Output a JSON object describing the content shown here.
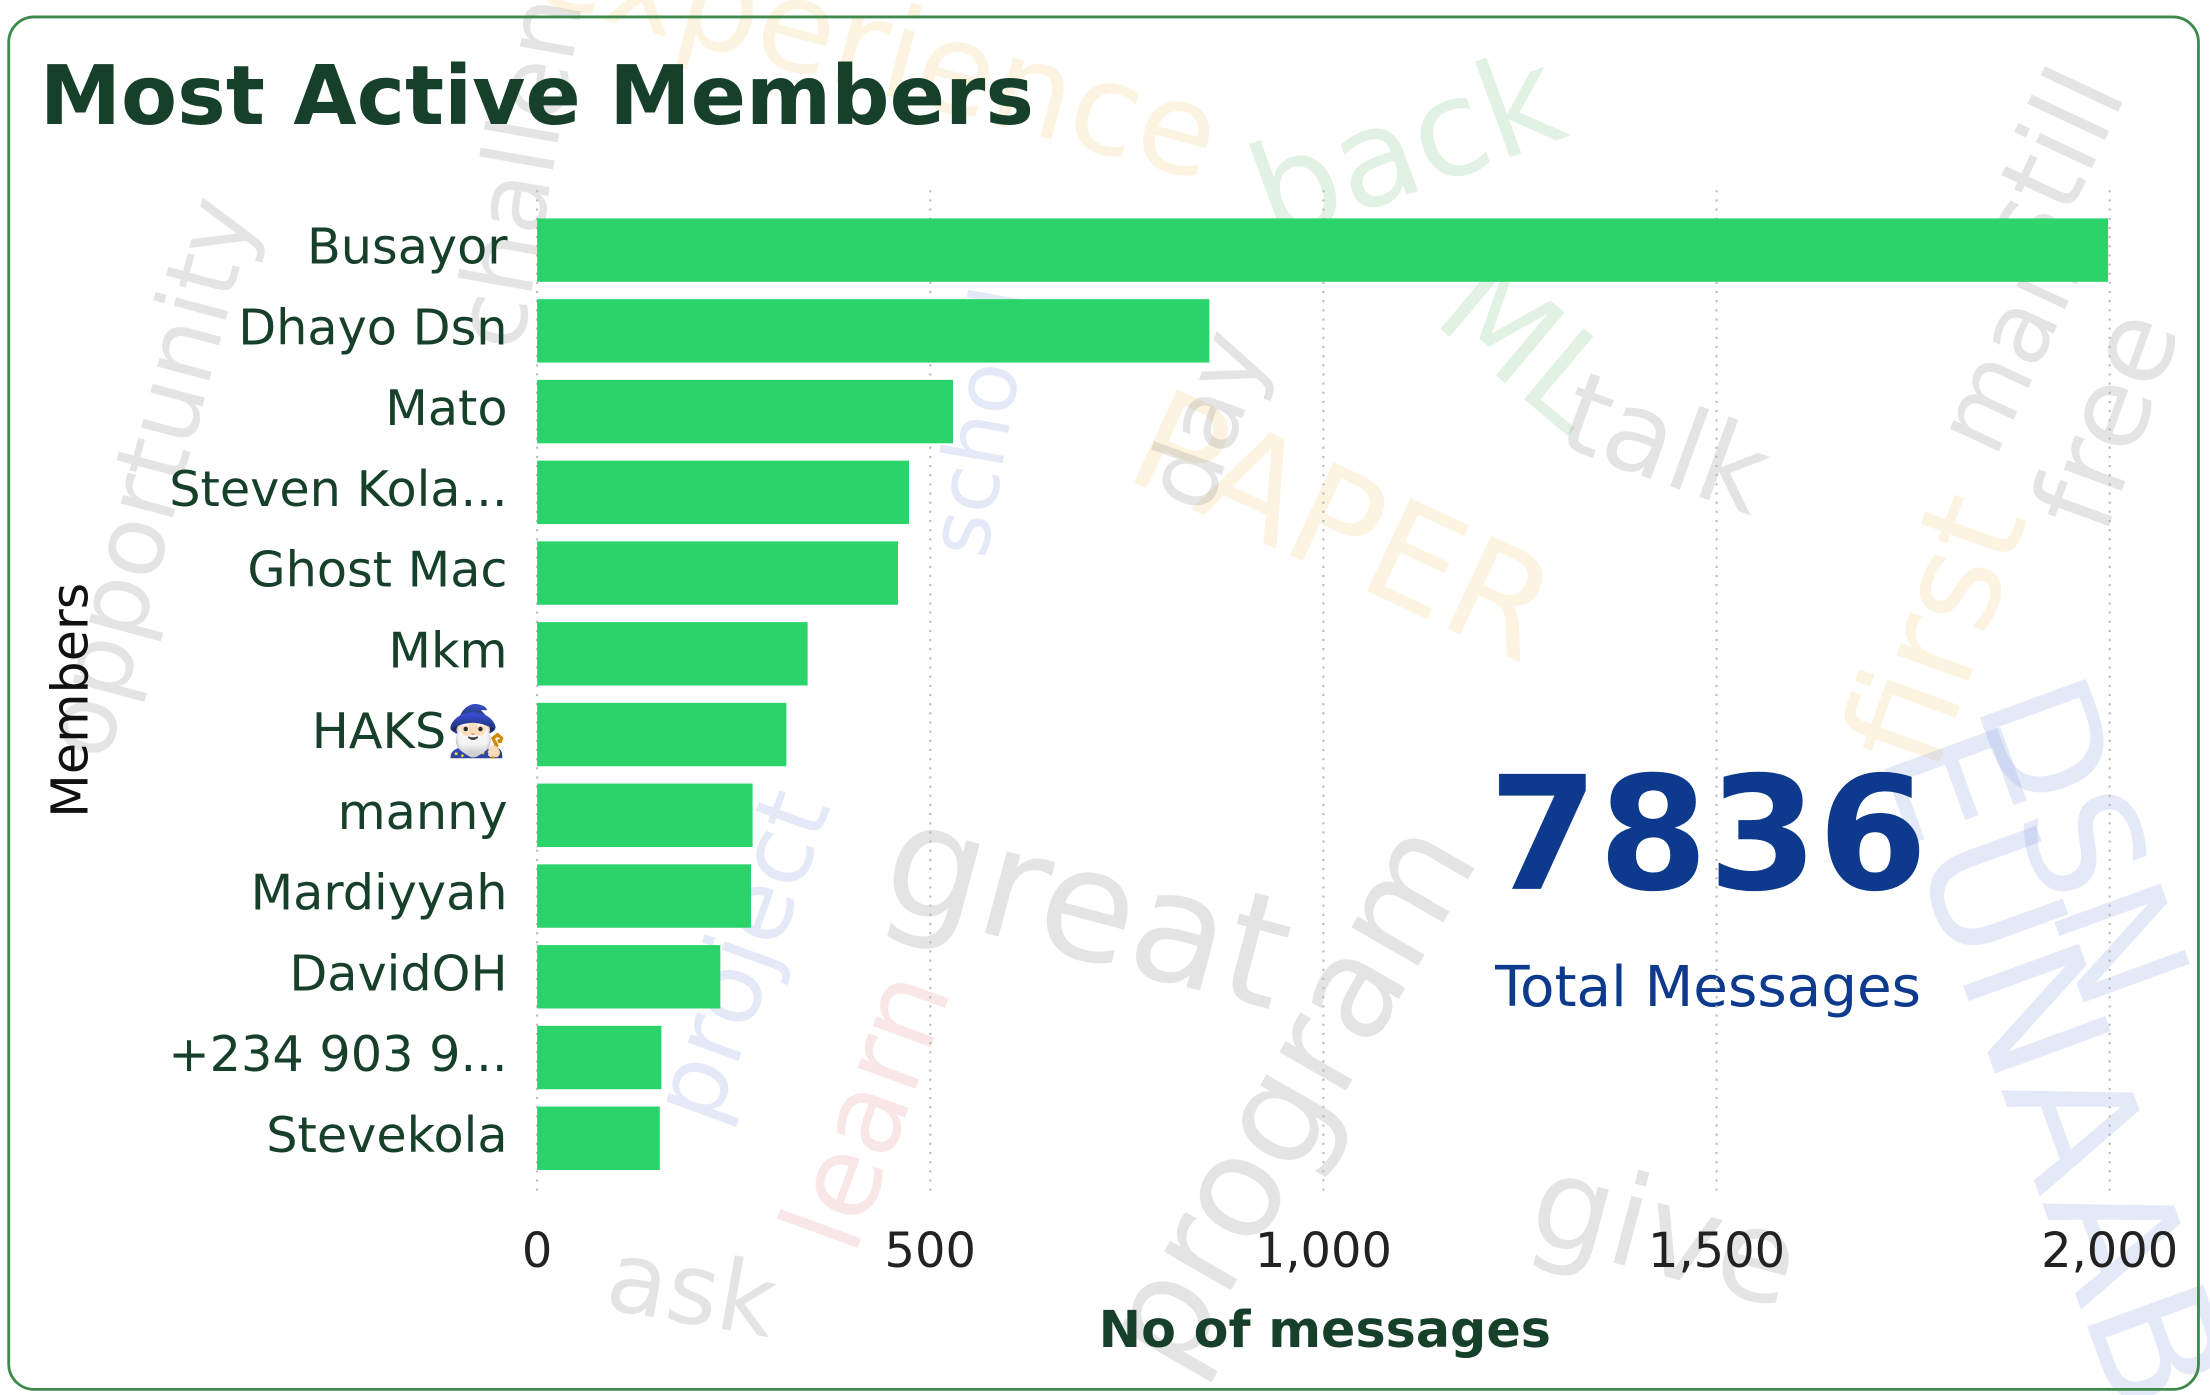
{
  "chart_data": {
    "type": "bar",
    "orientation": "horizontal",
    "title": "Most Active Members",
    "x_label": "No of messages",
    "y_label": "Members",
    "categories": [
      "Busayor",
      "Dhayo Dsn",
      "Mato",
      "Steven Kola...",
      "Ghost Mac",
      "Mkm",
      "HAKS🧙🏻‍♂️",
      "manny",
      "Mardiyyah",
      "DavidOH",
      "+234 903 9...",
      "Stevekola"
    ],
    "values": [
      1998,
      855,
      529,
      473,
      459,
      344,
      317,
      274,
      272,
      233,
      158,
      156
    ],
    "color": "#2bd36b",
    "xlim": [
      0,
      2000
    ],
    "xticks": [
      0,
      500,
      {
        "value": 1000,
        "label": "1,000"
      },
      {
        "value": 1500,
        "label": "1,500"
      },
      {
        "value": 2000,
        "label": "2,000"
      }
    ],
    "grid": true,
    "card": {
      "value": 7836,
      "label": "Total Messages"
    },
    "background_words": [
      "challenge",
      "experience",
      "back",
      "ML",
      "talk",
      "PAPER",
      "first",
      "free",
      "great",
      "program",
      "learn",
      "project",
      "ask",
      "give",
      "DSN",
      "EUNAAB",
      "day",
      "school",
      "opportunity",
      "still",
      "mail"
    ]
  }
}
